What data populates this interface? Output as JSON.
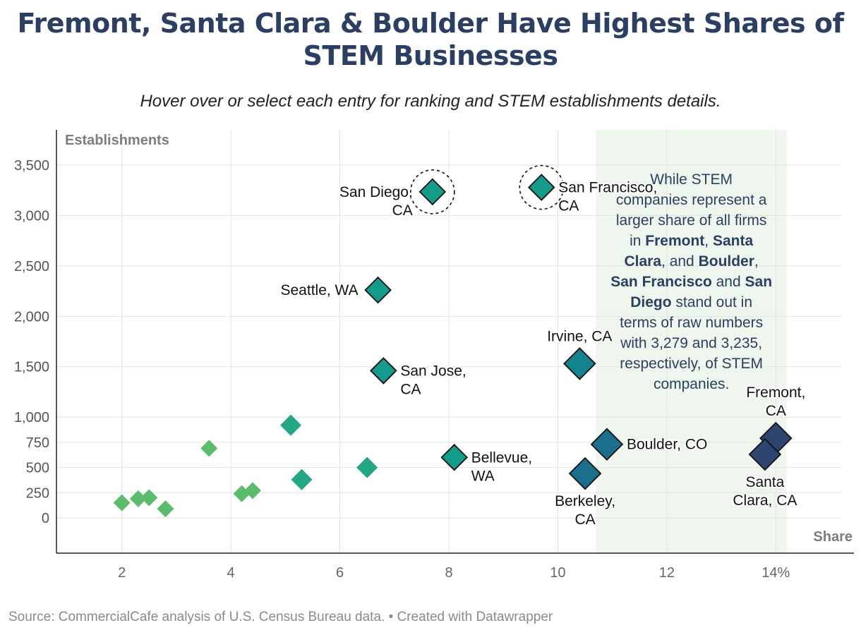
{
  "header": {
    "title_line1": "Fremont, Santa Clara & Boulder Have Highest Shares of",
    "title_line2": "STEM Businesses",
    "subtitle": "Hover over or select each entry for ranking and STEM establishments details."
  },
  "footer": {
    "source": "Source: CommercialCafe analysis of U.S. Census Bureau data. • Created with Datawrapper"
  },
  "annotation": {
    "lines": [
      [
        {
          "t": "While STEM",
          "b": false
        }
      ],
      [
        {
          "t": "companies represent a",
          "b": false
        }
      ],
      [
        {
          "t": "larger share of all firms",
          "b": false
        }
      ],
      [
        {
          "t": "in ",
          "b": false
        },
        {
          "t": "Fremont",
          "b": true
        },
        {
          "t": ", ",
          "b": false
        },
        {
          "t": "Santa",
          "b": true
        }
      ],
      [
        {
          "t": "Clara",
          "b": true
        },
        {
          "t": ", and ",
          "b": false
        },
        {
          "t": "Boulder",
          "b": true
        },
        {
          "t": ",",
          "b": false
        }
      ],
      [
        {
          "t": "San Francisco",
          "b": true
        },
        {
          "t": " and ",
          "b": false
        },
        {
          "t": "San",
          "b": true
        }
      ],
      [
        {
          "t": "Diego",
          "b": true
        },
        {
          "t": " stand out in",
          "b": false
        }
      ],
      [
        {
          "t": "terms of raw numbers",
          "b": false
        }
      ],
      [
        {
          "t": "with 3,279 and 3,235,",
          "b": false
        }
      ],
      [
        {
          "t": "respectively, of STEM",
          "b": false
        }
      ],
      [
        {
          "t": "companies.",
          "b": false
        }
      ]
    ]
  },
  "chart_data": {
    "type": "scatter",
    "title": "Fremont, Santa Clara & Boulder Have Highest Shares of STEM Businesses",
    "xlabel": "Share",
    "ylabel": "Establishments",
    "x_unit_suffix": "%",
    "xlim": [
      0.8,
      15.2
    ],
    "ylim": [
      -350,
      3850
    ],
    "x_ticks": [
      2,
      4,
      6,
      8,
      10,
      12,
      14
    ],
    "x_tick_labels": [
      "2",
      "4",
      "6",
      "8",
      "10",
      "12",
      "14%"
    ],
    "y_ticks": [
      0,
      250,
      500,
      750,
      1000,
      1500,
      2000,
      2500,
      3000,
      3500
    ],
    "y_tick_labels": [
      "0",
      "250",
      "500",
      "750",
      "1,000",
      "1,500",
      "2,000",
      "2,500",
      "3,000",
      "3,500"
    ],
    "grid": true,
    "highlight_band": {
      "x_range": [
        10.7,
        14.2
      ],
      "color": "#eef6ee"
    },
    "colors": {
      "light_green": "#5bbc6c",
      "green": "#22a884",
      "teal": "#139c8c",
      "dark_teal": "#12848f",
      "blue_teal": "#1a6f8d",
      "navy": "#2c4670",
      "annotation_text": "#2b3f63",
      "axis_label": "#7d7d7d"
    },
    "points": [
      {
        "name": "",
        "x": 2.0,
        "y": 150,
        "color": "#5bbc6c",
        "size": "small"
      },
      {
        "name": "",
        "x": 2.3,
        "y": 190,
        "color": "#5bbc6c",
        "size": "small"
      },
      {
        "name": "",
        "x": 2.5,
        "y": 200,
        "color": "#5bbc6c",
        "size": "small"
      },
      {
        "name": "",
        "x": 2.8,
        "y": 90,
        "color": "#5bbc6c",
        "size": "small"
      },
      {
        "name": "",
        "x": 3.6,
        "y": 690,
        "color": "#5bbc6c",
        "size": "small"
      },
      {
        "name": "",
        "x": 4.2,
        "y": 240,
        "color": "#5bbc6c",
        "size": "small"
      },
      {
        "name": "",
        "x": 4.4,
        "y": 270,
        "color": "#5bbc6c",
        "size": "small"
      },
      {
        "name": "",
        "x": 5.1,
        "y": 920,
        "color": "#22a884",
        "size": "medium"
      },
      {
        "name": "",
        "x": 5.3,
        "y": 380,
        "color": "#22a884",
        "size": "medium"
      },
      {
        "name": "",
        "x": 6.5,
        "y": 500,
        "color": "#22a884",
        "size": "medium"
      },
      {
        "name": "San Diego, CA",
        "x": 7.7,
        "y": 3235,
        "color": "#139c8c",
        "size": "large",
        "outlined": true,
        "circled": true,
        "label": [
          "San Diego,",
          "CA"
        ],
        "label_pos": "left"
      },
      {
        "name": "San Francisco, CA",
        "x": 9.7,
        "y": 3279,
        "color": "#139c8c",
        "size": "large",
        "outlined": true,
        "circled": true,
        "label": [
          "San Francisco,",
          "CA"
        ],
        "label_pos": "right"
      },
      {
        "name": "Seattle, WA",
        "x": 6.7,
        "y": 2260,
        "color": "#139c8c",
        "size": "large",
        "outlined": true,
        "label": [
          "Seattle, WA"
        ],
        "label_pos": "left"
      },
      {
        "name": "San Jose, CA",
        "x": 6.8,
        "y": 1460,
        "color": "#139c8c",
        "size": "large",
        "outlined": true,
        "label": [
          "San Jose,",
          "CA"
        ],
        "label_pos": "right"
      },
      {
        "name": "Bellevue, WA",
        "x": 8.1,
        "y": 600,
        "color": "#139c8c",
        "size": "large",
        "outlined": true,
        "label": [
          "Bellevue,",
          "WA"
        ],
        "label_pos": "right"
      },
      {
        "name": "Irvine, CA",
        "x": 10.4,
        "y": 1530,
        "color": "#12848f",
        "size": "xlarge",
        "outlined": true,
        "label": [
          "Irvine, CA"
        ],
        "label_pos": "top"
      },
      {
        "name": "Boulder, CO",
        "x": 10.9,
        "y": 730,
        "color": "#1a6f8d",
        "size": "xlarge",
        "outlined": true,
        "label": [
          "Boulder, CO"
        ],
        "label_pos": "right"
      },
      {
        "name": "Berkeley, CA",
        "x": 10.5,
        "y": 440,
        "color": "#1a6f8d",
        "size": "xlarge",
        "outlined": true,
        "label": [
          "Berkeley,",
          "CA"
        ],
        "label_pos": "bottom"
      },
      {
        "name": "Fremont, CA",
        "x": 14.0,
        "y": 790,
        "color": "#2c4670",
        "size": "xlarge",
        "outlined": true,
        "label": [
          "Fremont,",
          "CA"
        ],
        "label_pos": "top"
      },
      {
        "name": "Santa Clara, CA",
        "x": 13.8,
        "y": 630,
        "color": "#2c4670",
        "size": "xlarge",
        "outlined": true,
        "label": [
          "Santa",
          "Clara, CA"
        ],
        "label_pos": "bottom"
      }
    ]
  }
}
